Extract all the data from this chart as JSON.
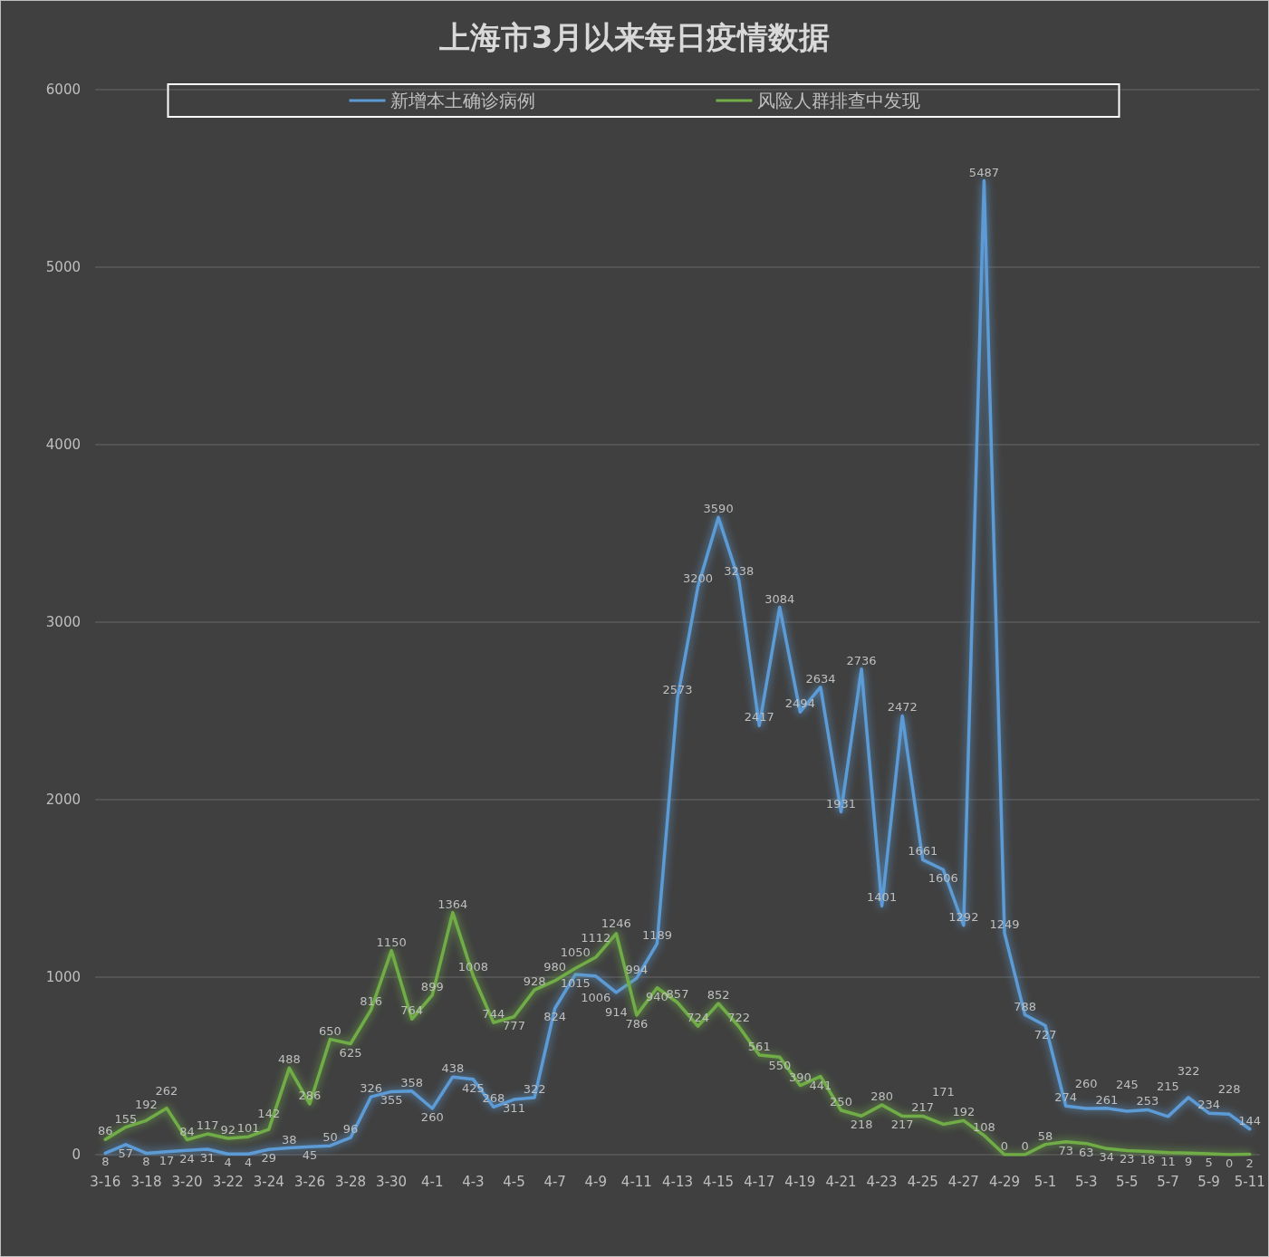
{
  "chart_data": {
    "type": "line",
    "title": "上海市3月以来每日疫情数据",
    "categories": [
      "3-16",
      null,
      "3-18",
      null,
      "3-20",
      null,
      "3-22",
      null,
      "3-24",
      null,
      "3-26",
      null,
      "3-28",
      null,
      "3-30",
      null,
      "4-1",
      null,
      "4-3",
      null,
      "4-5",
      null,
      "4-7",
      null,
      "4-9",
      null,
      "4-11",
      null,
      "4-13",
      null,
      "4-15",
      null,
      "4-17",
      null,
      "4-19",
      null,
      "4-21",
      null,
      "4-23",
      null,
      "4-25",
      null,
      "4-27",
      null,
      "4-29",
      null,
      "5-1",
      null,
      "5-3",
      null,
      "5-5",
      null,
      "5-7",
      null,
      "5-9",
      null,
      "5-11"
    ],
    "series": [
      {
        "name": "新增本土确诊病例",
        "color": "#5b9bd5",
        "values": [
          8,
          57,
          8,
          17,
          24,
          31,
          4,
          4,
          29,
          38,
          45,
          50,
          96,
          326,
          355,
          358,
          260,
          438,
          425,
          268,
          311,
          322,
          824,
          1015,
          1006,
          914,
          994,
          1189,
          2573,
          3200,
          3590,
          3238,
          2417,
          3084,
          2494,
          2634,
          1931,
          2736,
          1401,
          2472,
          1661,
          1606,
          1292,
          5487,
          1249,
          788,
          727,
          274,
          260,
          261,
          245,
          253,
          215,
          322,
          234,
          228,
          144
        ]
      },
      {
        "name": "风险人群排查中发现",
        "color": "#70ad47",
        "values": [
          86,
          155,
          192,
          262,
          84,
          117,
          92,
          101,
          142,
          488,
          286,
          650,
          625,
          816,
          1150,
          764,
          899,
          1364,
          1008,
          744,
          777,
          928,
          980,
          1050,
          1112,
          1246,
          786,
          940,
          857,
          724,
          852,
          722,
          561,
          550,
          390,
          441,
          250,
          218,
          280,
          217,
          217,
          171,
          192,
          108,
          0,
          0,
          58,
          73,
          63,
          34,
          23,
          18,
          11,
          9,
          5,
          0,
          2
        ]
      }
    ],
    "ylim": [
      0,
      6000
    ],
    "yticks": [
      0,
      1000,
      2000,
      3000,
      4000,
      5000,
      6000
    ],
    "grid": "y",
    "legend": "top",
    "marker": "none",
    "line_style": "solid",
    "data_labels": true
  }
}
